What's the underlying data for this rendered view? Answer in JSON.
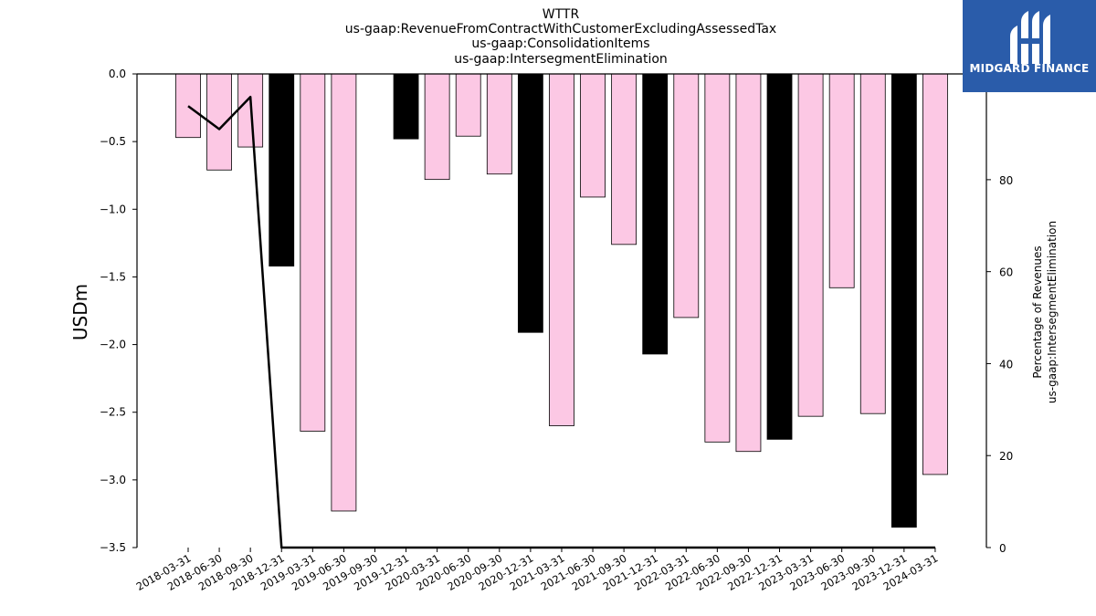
{
  "chart_data": {
    "type": "bar",
    "title_lines": [
      "WTTR",
      "us-gaap:RevenueFromContractWithCustomerExcludingAssessedTax",
      "us-gaap:ConsolidationItems",
      "us-gaap:IntersegmentElimination"
    ],
    "ylabel": "USDm",
    "ylabel_right": [
      "Percentage of Revenues",
      "us-gaap:IntersegmentElimination"
    ],
    "ylim": [
      -3.5,
      0.0
    ],
    "ylim_right": [
      0,
      103
    ],
    "yticks": [
      "0.0",
      "−0.5",
      "−1.0",
      "−1.5",
      "−2.0",
      "−2.5",
      "−3.0",
      "−3.5"
    ],
    "ytick_values": [
      0.0,
      -0.5,
      -1.0,
      -1.5,
      -2.0,
      -2.5,
      -3.0,
      -3.5
    ],
    "yticks_right": [
      "0",
      "20",
      "40",
      "60",
      "80"
    ],
    "ytick_right_values": [
      0,
      20,
      40,
      60,
      80
    ],
    "categories": [
      "2018-03-31",
      "2018-06-30",
      "2018-09-30",
      "2018-12-31",
      "2019-03-31",
      "2019-06-30",
      "2019-09-30",
      "2019-12-31",
      "2020-03-31",
      "2020-06-30",
      "2020-09-30",
      "2020-12-31",
      "2021-03-31",
      "2021-06-30",
      "2021-09-30",
      "2021-12-31",
      "2022-03-31",
      "2022-06-30",
      "2022-09-30",
      "2022-12-31",
      "2023-03-31",
      "2023-06-30",
      "2023-09-30",
      "2023-12-31",
      "2024-03-31"
    ],
    "values": [
      -0.47,
      -0.71,
      -0.54,
      -1.42,
      -2.64,
      -3.23,
      null,
      -0.48,
      -0.78,
      -0.46,
      -0.74,
      -1.91,
      -2.6,
      -0.91,
      -1.26,
      -2.07,
      -1.8,
      -2.72,
      -2.79,
      -2.7,
      -2.53,
      -1.58,
      -2.51,
      -3.35,
      -2.96
    ],
    "annual_flags": [
      false,
      false,
      false,
      true,
      false,
      false,
      false,
      true,
      false,
      false,
      false,
      true,
      false,
      false,
      false,
      true,
      false,
      false,
      false,
      true,
      false,
      false,
      false,
      true,
      false
    ],
    "bar_colors": {
      "quarter": "#fcc8e4",
      "annual": "#000000"
    },
    "line_series": {
      "name": "Percentage of Revenues",
      "values": [
        96,
        91,
        98,
        0,
        0,
        0,
        0,
        0,
        0,
        0,
        0,
        0,
        0,
        0,
        0,
        0,
        0,
        0,
        0,
        0,
        0,
        0,
        0,
        0,
        0
      ],
      "color": "#000000"
    },
    "grid": false,
    "legend": "none"
  },
  "logo": {
    "text": "MIDGARD FINANCE",
    "background": "#2a5caa"
  }
}
